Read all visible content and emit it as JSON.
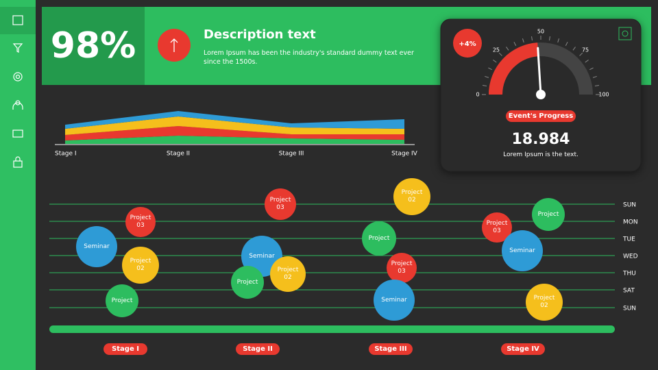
{
  "kpi": {
    "value": "98%",
    "title": "Description text",
    "text": "Lorem Ipsum has been the industry's standard dummy text ever since the 1500s."
  },
  "gauge": {
    "badge": "+4%",
    "value": 48,
    "range": [
      0,
      100
    ],
    "ticks": [
      0,
      25,
      50,
      75,
      100
    ],
    "label": "Event's Progress",
    "number": "18.984",
    "caption": "Lorem Ipsum is the text."
  },
  "area_chart": {
    "categories": [
      "Stage I",
      "Stage II",
      "Stage III",
      "Stage IV"
    ],
    "series": [
      {
        "color": "#2dbd5f",
        "values": [
          5,
          12,
          8,
          6
        ]
      },
      {
        "color": "#e8392f",
        "values": [
          8,
          14,
          6,
          8
        ]
      },
      {
        "color": "#f5bf1c",
        "values": [
          9,
          14,
          10,
          8
        ]
      },
      {
        "color": "#2e9bd6",
        "values": [
          6,
          8,
          6,
          14
        ]
      }
    ]
  },
  "schedule": {
    "days": [
      "SUN",
      "MON",
      "TUE",
      "WED",
      "THU",
      "SAT",
      "SUN"
    ],
    "stages": [
      "Stage I",
      "Stage II",
      "Stage III",
      "Stage IV"
    ],
    "events": [
      {
        "label": "Seminar",
        "color": "#2e9bd6"
      },
      {
        "label": "Project 03",
        "color": "#e8392f"
      },
      {
        "label": "Project 02",
        "color": "#f5bf1c"
      },
      {
        "label": "Project",
        "color": "#2dbd5f"
      },
      {
        "label": "Project 03",
        "color": "#e8392f"
      },
      {
        "label": "Seminar",
        "color": "#2e9bd6"
      },
      {
        "label": "Project",
        "color": "#2dbd5f"
      },
      {
        "label": "Project 02",
        "color": "#f5bf1c"
      },
      {
        "label": "Project 02",
        "color": "#f5bf1c"
      },
      {
        "label": "Project",
        "color": "#2dbd5f"
      },
      {
        "label": "Project 03",
        "color": "#e8392f"
      },
      {
        "label": "Seminar",
        "color": "#2e9bd6"
      },
      {
        "label": "Project 03",
        "color": "#e8392f"
      },
      {
        "label": "Project",
        "color": "#2dbd5f"
      },
      {
        "label": "Seminar",
        "color": "#2e9bd6"
      },
      {
        "label": "Project 02",
        "color": "#f5bf1c"
      }
    ]
  }
}
